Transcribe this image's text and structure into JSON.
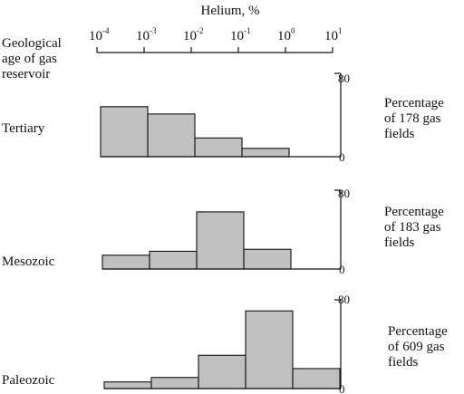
{
  "chart_data": {
    "type": "histogram",
    "xlabel": "Helium, %",
    "x_scale": "log",
    "x_ticks": [
      "-4",
      "-3",
      "-2",
      "-1",
      "0",
      "1"
    ],
    "x_tick_base": "10",
    "row_header": [
      "Geological",
      "age of gas",
      "reservoir"
    ],
    "bins": [
      "1e-4 to 1e-3",
      "1e-3 to 1e-2",
      "1e-2 to 1e-1",
      "1e-1 to 1e0",
      "1e0 to 1e1"
    ],
    "ylim": [
      0,
      80
    ],
    "y_tick_labels": [
      "80",
      "0"
    ],
    "panels": [
      {
        "name": "Tertiary",
        "right_label": [
          "Percentage",
          "of 178 gas",
          "fields"
        ],
        "values": [
          48,
          41,
          18,
          8,
          0
        ]
      },
      {
        "name": "Mesozoic",
        "right_label": [
          "Percentage",
          "of 183 gas",
          "fields"
        ],
        "values": [
          14,
          18,
          58,
          20,
          0
        ]
      },
      {
        "name": "Paleozoic",
        "right_label": [
          "Percentage",
          "of 609 gas",
          "fields"
        ],
        "values": [
          6,
          10,
          30,
          70,
          18
        ]
      }
    ]
  }
}
